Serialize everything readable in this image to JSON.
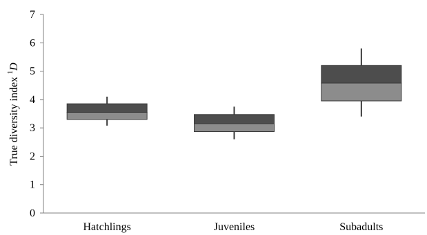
{
  "chart_data": {
    "type": "box",
    "title": "",
    "xlabel": "",
    "ylabel": "True diversity index",
    "ylabel_superscript": "1",
    "ylabel_symbol": "D",
    "ylim": [
      0,
      7
    ],
    "yticks": [
      "0",
      "1",
      "2",
      "3",
      "4",
      "5",
      "6",
      "7"
    ],
    "grid": false,
    "legend": "none",
    "categories": [
      "Hatchlings",
      "Juveniles",
      "Subadults"
    ],
    "boxes": [
      {
        "category": "Hatchlings",
        "min": 3.08,
        "q1": 3.3,
        "median": 3.55,
        "q3": 3.85,
        "max": 4.1
      },
      {
        "category": "Juveniles",
        "min": 2.6,
        "q1": 2.87,
        "median": 3.15,
        "q3": 3.47,
        "max": 3.75
      },
      {
        "category": "Subadults",
        "min": 3.4,
        "q1": 3.95,
        "median": 4.58,
        "q3": 5.2,
        "max": 5.8
      }
    ],
    "colors": {
      "upper_box": "#4d4d4d",
      "lower_box": "#8c8c8c",
      "whisker": "#3a3a3a",
      "axis": "#808080"
    }
  }
}
